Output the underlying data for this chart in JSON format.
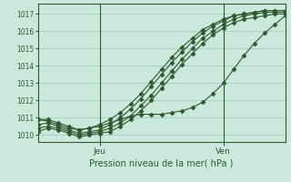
{
  "xlabel": "Pression niveau de la mer( hPa )",
  "bg_color": "#cce8dd",
  "plot_bg_color": "#cce8dd",
  "grid_color": "#99ccbb",
  "line_color": "#2d5a2d",
  "tick_color": "#2d5a2d",
  "label_color": "#2d5a2d",
  "ylim": [
    1009.6,
    1017.6
  ],
  "xlim": [
    0,
    48
  ],
  "jeu_x": 12,
  "ven_x": 36,
  "series": [
    [
      1010.2,
      1010.4,
      1010.3,
      1010.1,
      1009.9,
      1010.0,
      1010.1,
      1010.2,
      1010.5,
      1010.9,
      1011.4,
      1012.0,
      1012.7,
      1013.4,
      1014.1,
      1014.7,
      1015.3,
      1015.8,
      1016.2,
      1016.5,
      1016.7,
      1016.8,
      1016.9,
      1017.0,
      1017.0
    ],
    [
      1010.4,
      1010.5,
      1010.4,
      1010.2,
      1010.0,
      1010.1,
      1010.2,
      1010.4,
      1010.7,
      1011.1,
      1011.7,
      1012.3,
      1013.0,
      1013.7,
      1014.4,
      1015.0,
      1015.6,
      1016.0,
      1016.4,
      1016.7,
      1016.9,
      1017.0,
      1017.1,
      1017.1,
      1017.1
    ],
    [
      1010.6,
      1010.7,
      1010.5,
      1010.3,
      1010.1,
      1010.2,
      1010.3,
      1010.6,
      1011.0,
      1011.5,
      1012.1,
      1012.8,
      1013.5,
      1014.2,
      1014.8,
      1015.4,
      1015.9,
      1016.3,
      1016.6,
      1016.9,
      1017.0,
      1017.1,
      1017.2,
      1017.2,
      1017.2
    ],
    [
      1010.9,
      1010.9,
      1010.7,
      1010.5,
      1010.3,
      1010.4,
      1010.6,
      1010.9,
      1011.3,
      1011.8,
      1012.4,
      1013.1,
      1013.8,
      1014.5,
      1015.1,
      1015.6,
      1016.1,
      1016.4,
      1016.7,
      1016.9,
      1017.0,
      1017.1,
      1017.2,
      1017.2,
      1017.2
    ],
    [
      1010.9,
      1010.8,
      1010.6,
      1010.4,
      1010.3,
      1010.4,
      1010.5,
      1010.7,
      1010.9,
      1011.1,
      1011.2,
      1011.2,
      1011.2,
      1011.3,
      1011.4,
      1011.6,
      1011.9,
      1012.4,
      1013.0,
      1013.8,
      1014.6,
      1015.3,
      1015.9,
      1016.4,
      1016.9
    ]
  ],
  "yticks": [
    1010,
    1011,
    1012,
    1013,
    1014,
    1015,
    1016,
    1017
  ],
  "marker": "D",
  "markersize": 2.5,
  "linewidth": 0.8
}
